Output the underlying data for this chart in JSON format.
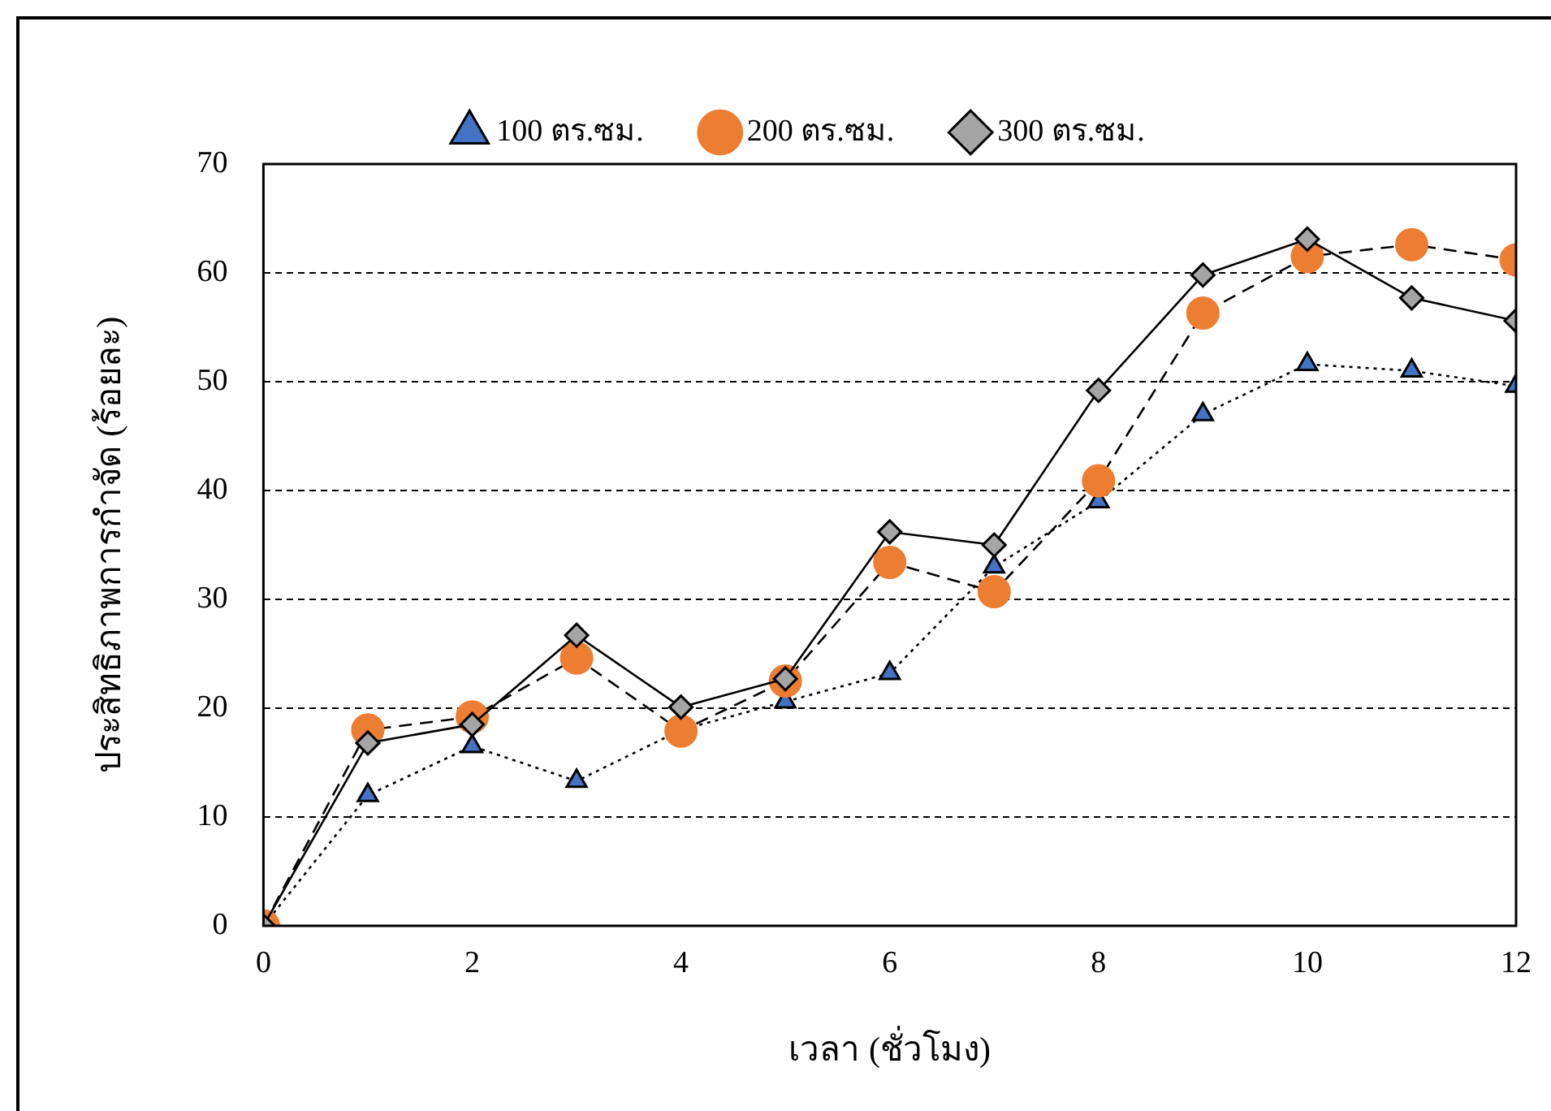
{
  "chart_data": {
    "type": "line",
    "xlabel": "เวลา (ชั่วโมง)",
    "ylabel": "ประสิทธิภาพการกำจัด (ร้อยละ)",
    "x": [
      0,
      1,
      2,
      3,
      4,
      5,
      6,
      7,
      8,
      9,
      10,
      11,
      12
    ],
    "xlim": [
      0,
      12
    ],
    "xticks": [
      0,
      2,
      4,
      6,
      8,
      10,
      12
    ],
    "ylim": [
      0,
      70
    ],
    "yticks": [
      0,
      10,
      20,
      30,
      40,
      50,
      60,
      70
    ],
    "grid": "y",
    "legend": "top",
    "series": [
      {
        "name": "100 ตร.ซม.",
        "color": "#4472c4",
        "marker": "triangle",
        "line_style": "dotted",
        "values": [
          0,
          12,
          16.5,
          13.3,
          18,
          20.6,
          23.2,
          33,
          39,
          47,
          51.6,
          51,
          49.6
        ]
      },
      {
        "name": "200 ตร.ซม.",
        "color": "#ed7d31",
        "marker": "circle",
        "line_style": "dashed",
        "values": [
          0,
          18,
          19.2,
          24.6,
          17.9,
          22.5,
          33.4,
          30.7,
          40.9,
          56.3,
          61.5,
          62.6,
          61.2
        ]
      },
      {
        "name": "300 ตร.ซม.",
        "color": "#a5a5a5",
        "marker": "diamond",
        "line_style": "solid",
        "values": [
          0,
          16.8,
          18.5,
          26.7,
          20.1,
          22.7,
          36.2,
          35,
          49.2,
          59.8,
          63.1,
          57.7,
          55.6
        ]
      }
    ]
  }
}
